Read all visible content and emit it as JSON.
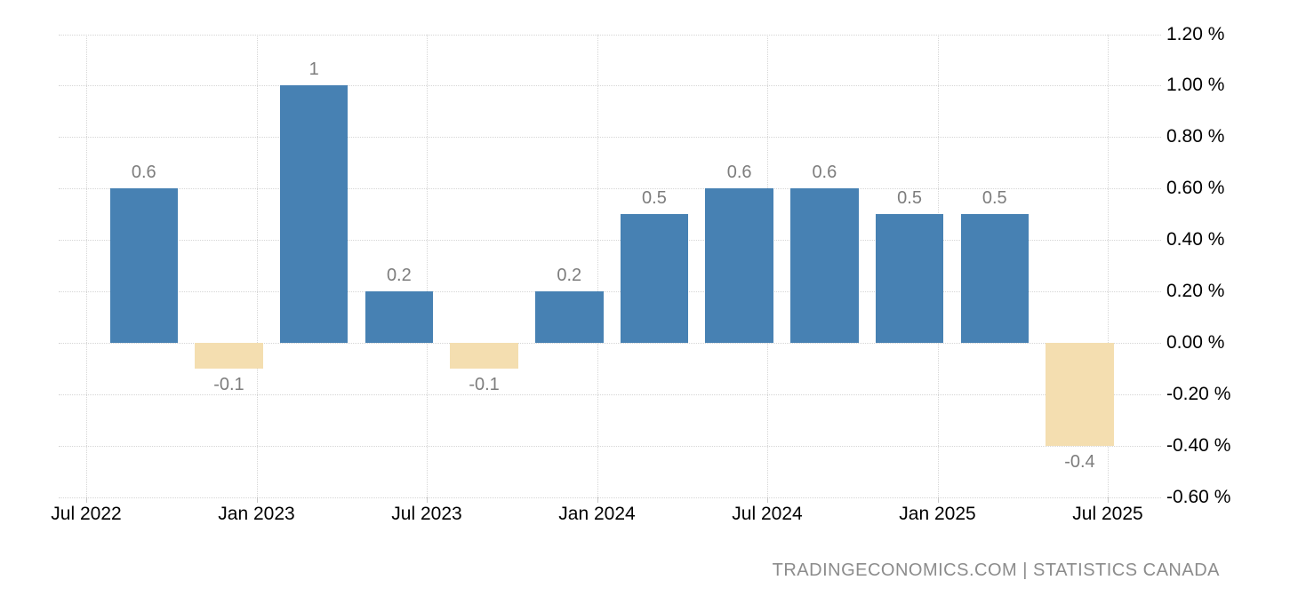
{
  "chart_data": {
    "type": "bar",
    "values": [
      0.6,
      -0.1,
      1,
      0.2,
      -0.1,
      0.2,
      0.5,
      0.6,
      0.6,
      0.5,
      0.5,
      -0.4
    ],
    "bar_labels": [
      "0.6",
      "-0.1",
      "1",
      "0.2",
      "-0.1",
      "0.2",
      "0.5",
      "0.6",
      "0.6",
      "0.5",
      "0.5",
      "-0.4"
    ],
    "x_tick_labels": [
      "Jul 2022",
      "Jan 2023",
      "Jul 2023",
      "Jan 2024",
      "Jul 2024",
      "Jan 2025",
      "Jul 2025"
    ],
    "y_tick_labels": [
      "1.20 %",
      "1.00 %",
      "0.80 %",
      "0.60 %",
      "0.40 %",
      "0.20 %",
      "0.00 %",
      "-0.20 %",
      "-0.40 %",
      "-0.60 %"
    ],
    "ylim": [
      -0.6,
      1.2
    ],
    "grid": "dotted",
    "legend": "none",
    "colors": {
      "positive_bar": "#4781b3",
      "negative_bar": "#f4deb0",
      "grid_line": "#d6d6d6",
      "data_label": "#7d7d7d",
      "axis_label": "#000000",
      "attribution": "#8c8c8c"
    }
  },
  "footer": {
    "attribution": "TRADINGECONOMICS.COM | STATISTICS CANADA"
  }
}
